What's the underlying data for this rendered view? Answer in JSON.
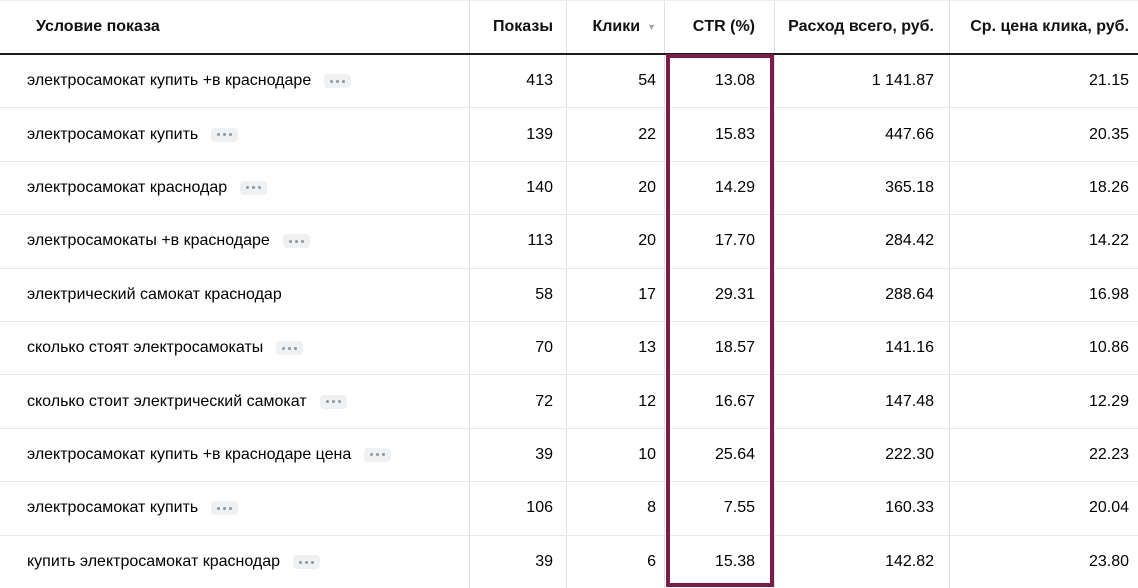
{
  "table": {
    "columns": [
      {
        "label": "Условие показа",
        "align": "left"
      },
      {
        "label": "Показы",
        "align": "right"
      },
      {
        "label": "Клики",
        "align": "right",
        "sorted": "desc",
        "sort_icon": "sort-desc-triangle"
      },
      {
        "label": "CTR (%)",
        "align": "right"
      },
      {
        "label": "Расход всего, руб.",
        "align": "right"
      },
      {
        "label": "Ср. цена клика, руб.",
        "align": "right"
      }
    ],
    "rows": [
      {
        "keyword": "электросамокат купить +в краснодаре",
        "actions_menu": true,
        "impressions": "413",
        "clicks": "54",
        "ctr": "13.08",
        "cost_total": "1 141.87",
        "avg_cpc": "21.15"
      },
      {
        "keyword": "электросамокат купить",
        "actions_menu": true,
        "impressions": "139",
        "clicks": "22",
        "ctr": "15.83",
        "cost_total": "447.66",
        "avg_cpc": "20.35"
      },
      {
        "keyword": "электросамокат краснодар",
        "actions_menu": true,
        "impressions": "140",
        "clicks": "20",
        "ctr": "14.29",
        "cost_total": "365.18",
        "avg_cpc": "18.26"
      },
      {
        "keyword": "электросамокаты +в краснодаре",
        "actions_menu": true,
        "impressions": "113",
        "clicks": "20",
        "ctr": "17.70",
        "cost_total": "284.42",
        "avg_cpc": "14.22"
      },
      {
        "keyword": "электрический самокат краснодар",
        "actions_menu": false,
        "impressions": "58",
        "clicks": "17",
        "ctr": "29.31",
        "cost_total": "288.64",
        "avg_cpc": "16.98"
      },
      {
        "keyword": "сколько стоят электросамокаты",
        "actions_menu": true,
        "impressions": "70",
        "clicks": "13",
        "ctr": "18.57",
        "cost_total": "141.16",
        "avg_cpc": "10.86"
      },
      {
        "keyword": "сколько стоит электрический самокат",
        "actions_menu": true,
        "impressions": "72",
        "clicks": "12",
        "ctr": "16.67",
        "cost_total": "147.48",
        "avg_cpc": "12.29"
      },
      {
        "keyword": "электросамокат купить +в краснодаре цена",
        "actions_menu": true,
        "impressions": "39",
        "clicks": "10",
        "ctr": "25.64",
        "cost_total": "222.30",
        "avg_cpc": "22.23"
      },
      {
        "keyword": "электросамокат купить",
        "actions_menu": true,
        "impressions": "106",
        "clicks": "8",
        "ctr": "7.55",
        "cost_total": "160.33",
        "avg_cpc": "20.04"
      },
      {
        "keyword": "купить электросамокат краснодар",
        "actions_menu": true,
        "impressions": "39",
        "clicks": "6",
        "ctr": "15.38",
        "cost_total": "142.82",
        "avg_cpc": "23.80"
      }
    ]
  },
  "highlight": {
    "highlighted_column": "CTR (%)",
    "color": "#7a1c4c"
  },
  "icons": {
    "sort_desc": "▼",
    "row_actions": "ellipsis-badge"
  }
}
